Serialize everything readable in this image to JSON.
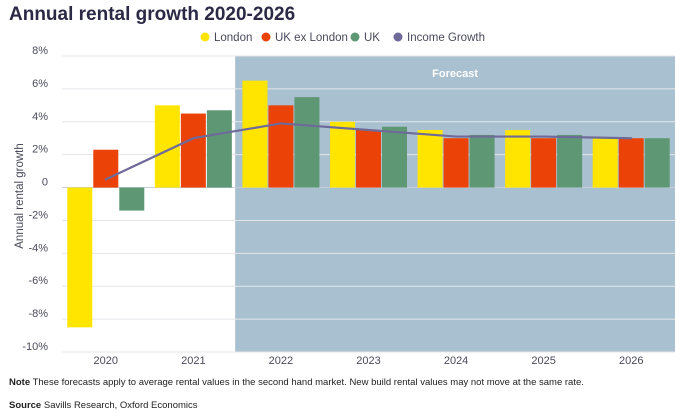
{
  "title": "Annual rental growth 2020-2026",
  "legend": [
    {
      "label": "London",
      "color": "#FFE500"
    },
    {
      "label": "UK ex London",
      "color": "#EB4208"
    },
    {
      "label": "UK",
      "color": "#5E9774"
    },
    {
      "label": "Income Growth",
      "color": "#6E6A99"
    }
  ],
  "forecast": {
    "label": "Forecast",
    "start_year": "2022",
    "color": "#A9C0D0"
  },
  "notes": {
    "note_label": "Note",
    "note_text": "These forecasts apply to average rental values in the second hand market. New build rental values may not move at the same rate.",
    "source_label": "Source",
    "source_text": "Savills Research, Oxford Economics"
  },
  "chart_data": {
    "type": "bar",
    "title": "Annual rental growth 2020-2026",
    "xlabel": "",
    "ylabel": "Annual rental growth",
    "ylim": [
      -10,
      8
    ],
    "yticks": [
      8,
      6,
      4,
      2,
      0,
      -2,
      -4,
      -6,
      -8,
      -10
    ],
    "ytick_labels": [
      "8%",
      "6%",
      "4%",
      "2%",
      "0",
      "-2%",
      "-4%",
      "-6%",
      "-8%",
      "-10%"
    ],
    "grid": true,
    "legend_position": "top",
    "categories": [
      "2020",
      "2021",
      "2022",
      "2023",
      "2024",
      "2025",
      "2026"
    ],
    "series": [
      {
        "name": "London",
        "type": "bar",
        "color": "#FFE500",
        "values": [
          -8.5,
          5.0,
          6.5,
          4.0,
          3.5,
          3.5,
          3.0
        ]
      },
      {
        "name": "UK ex London",
        "type": "bar",
        "color": "#EB4208",
        "values": [
          2.3,
          4.5,
          5.0,
          3.5,
          3.0,
          3.0,
          3.0
        ]
      },
      {
        "name": "UK",
        "type": "bar",
        "color": "#5E9774",
        "values": [
          -1.4,
          4.7,
          5.5,
          3.7,
          3.2,
          3.2,
          3.0
        ]
      },
      {
        "name": "Income Growth",
        "type": "line",
        "color": "#6E6A99",
        "values": [
          0.5,
          3.0,
          3.9,
          3.5,
          3.1,
          3.1,
          3.0
        ]
      }
    ]
  }
}
